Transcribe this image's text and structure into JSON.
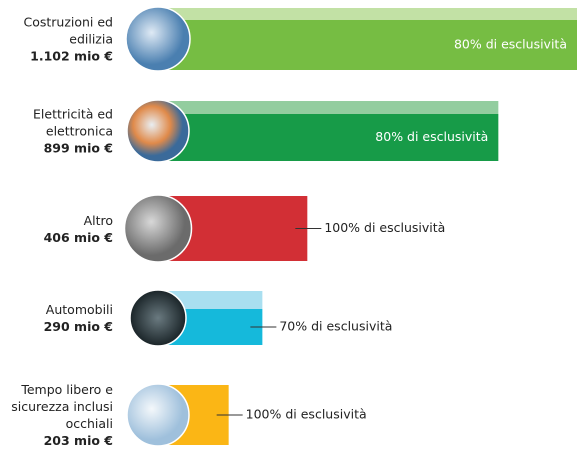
{
  "chart_data": {
    "type": "bar",
    "categories": [
      "Costruzioni ed edilizia",
      "Elettricità ed elettronica",
      "Altro",
      "Automobili",
      "Tempo libero e sicurezza inclusi occhiali"
    ],
    "values": [
      1102,
      899,
      406,
      290,
      203
    ],
    "value_labels": [
      "1.102 mio €",
      "899 mio €",
      "406 mio €",
      "290 mio €",
      "203 mio €"
    ],
    "annotations": [
      "80% di esclusività",
      "80% di esclusività",
      "100% di esclusività",
      "70% di esclusività",
      "100% di esclusività"
    ],
    "colors": [
      "#76bd43",
      "#179b48",
      "#d22f35",
      "#15b9db",
      "#fbb615"
    ],
    "highlight_colors": [
      "#c2e1a5",
      "#93cd9f",
      null,
      "#a9dff0",
      null
    ]
  }
}
